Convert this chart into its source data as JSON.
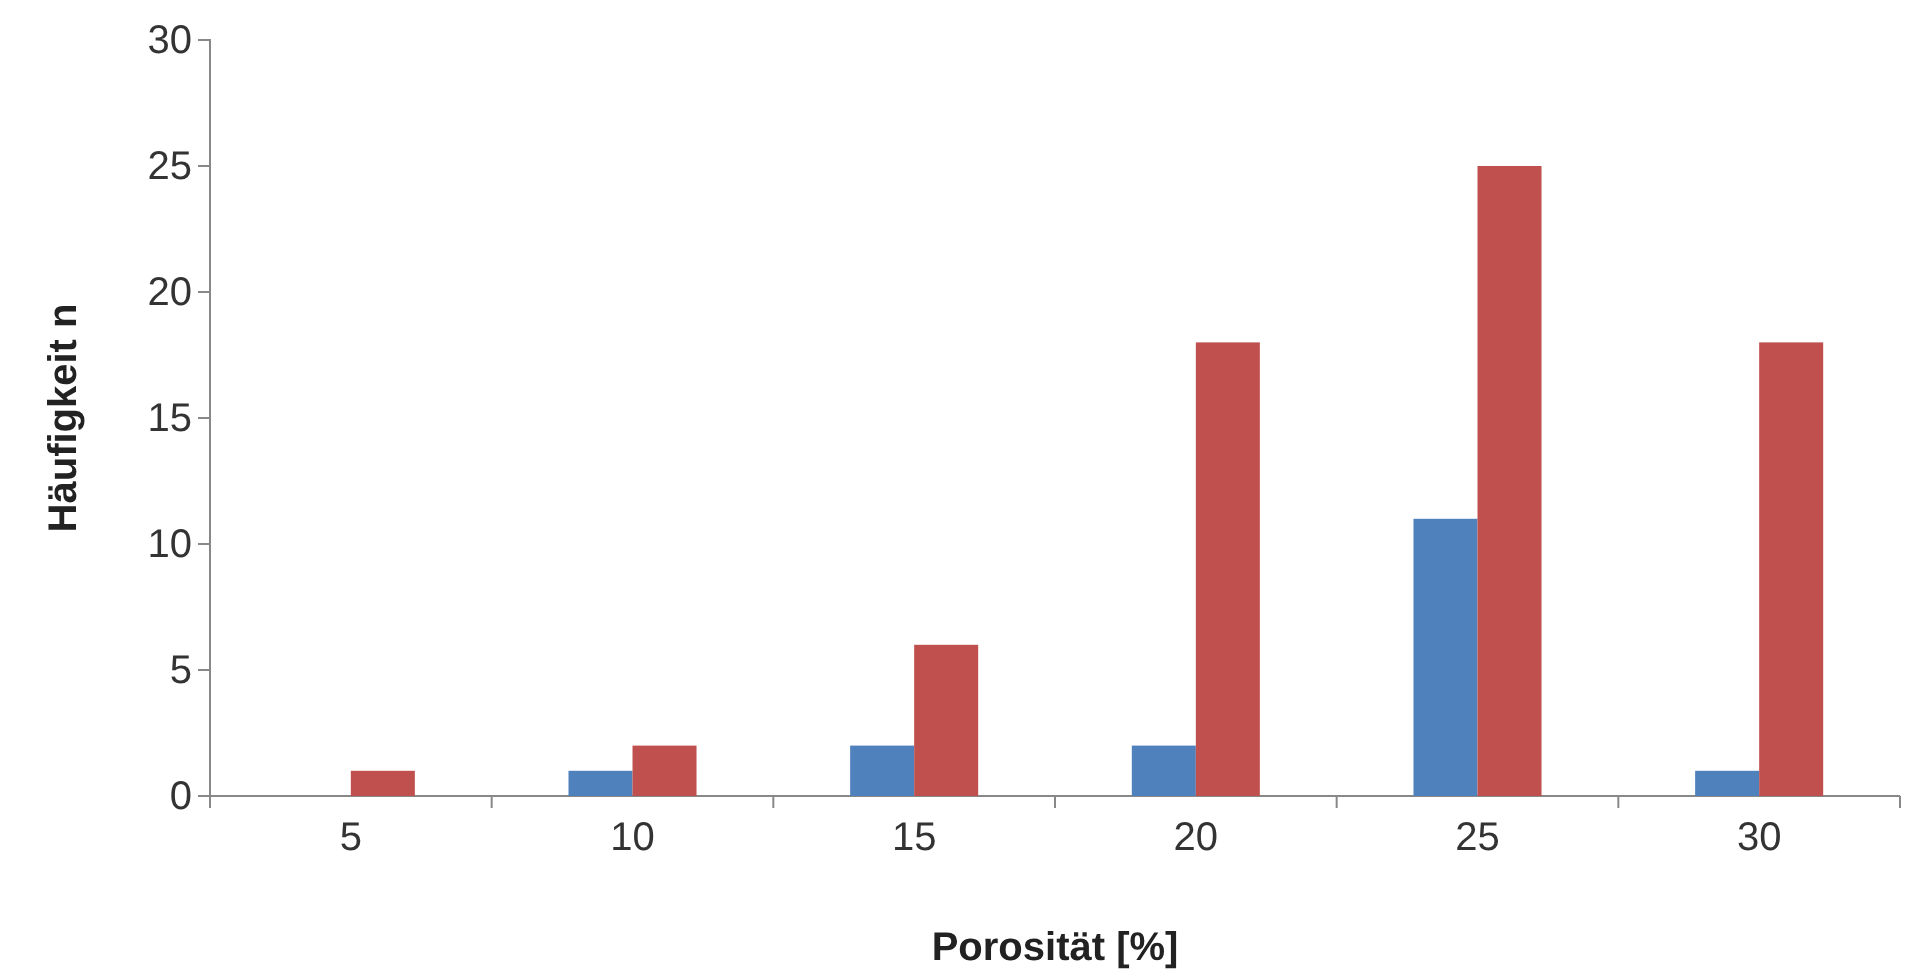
{
  "chart_data": {
    "type": "bar",
    "xlabel": "Porosität  [%]",
    "ylabel": "Häufigkeit n",
    "categories": [
      "5",
      "10",
      "15",
      "20",
      "25",
      "30"
    ],
    "series": [
      {
        "color": "#4f81bd",
        "values": [
          0,
          1,
          2,
          2,
          11,
          1
        ]
      },
      {
        "color": "#c0504d",
        "values": [
          1,
          2,
          6,
          18,
          25,
          18
        ]
      }
    ],
    "ylim": [
      0,
      30
    ],
    "yticks": [
      0,
      5,
      10,
      15,
      20,
      25,
      30
    ],
    "grid": false
  }
}
